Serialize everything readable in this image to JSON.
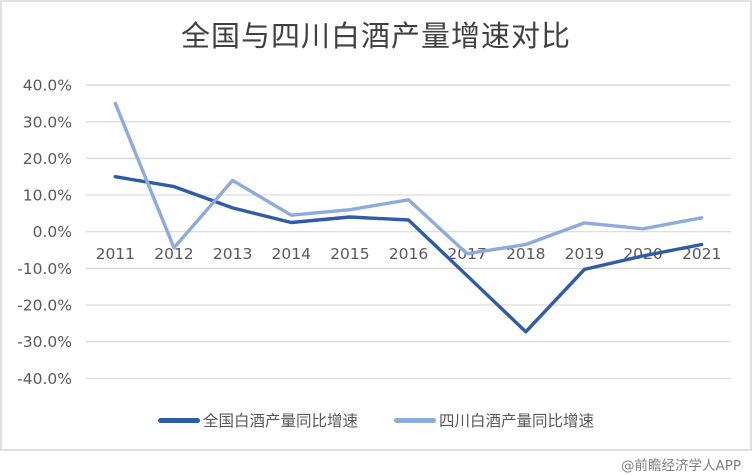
{
  "watermark": "@前瞻经济学人APP",
  "colors": {
    "national_line": "#2F5CA8",
    "sichuan_line": "#8FAADC",
    "gridline": "#D9D9D9",
    "tick_label": "#595959",
    "title": "#404040",
    "card_border": "#E1E1E1",
    "watermark_text": "#7F7F7F"
  },
  "chart_data": {
    "type": "line",
    "title": "全国与四川白酒产量增速对比",
    "categories": [
      "2011",
      "2012",
      "2013",
      "2014",
      "2015",
      "2016",
      "2017",
      "2018",
      "2019",
      "2020",
      "2021"
    ],
    "series": [
      {
        "name": "全国白酒产量同比增速",
        "color": "#2F5CA8",
        "values": [
          15.0,
          12.3,
          6.5,
          2.5,
          4.0,
          3.2,
          -12.0,
          -27.3,
          -10.3,
          -6.6,
          -3.5
        ]
      },
      {
        "name": "四川白酒产量同比增速",
        "color": "#8FAADC",
        "values": [
          35.0,
          -4.4,
          14.0,
          4.5,
          6.0,
          8.7,
          -6.0,
          -3.5,
          2.4,
          0.8,
          3.8
        ]
      }
    ],
    "y_ticks": [
      {
        "label": "40.0%",
        "value": 40
      },
      {
        "label": "30.0%",
        "value": 30
      },
      {
        "label": "20.0%",
        "value": 20
      },
      {
        "label": "10.0%",
        "value": 10
      },
      {
        "label": "0.0%",
        "value": 0
      },
      {
        "label": "-10.0%",
        "value": -10
      },
      {
        "label": "-20.0%",
        "value": -20
      },
      {
        "label": "-30.0%",
        "value": -30
      },
      {
        "label": "-40.0%",
        "value": -40
      }
    ],
    "ylim": [
      -40,
      40
    ],
    "grid": "horizontal-only",
    "legend_position": "bottom",
    "x_label_position": "below zero axis line"
  }
}
